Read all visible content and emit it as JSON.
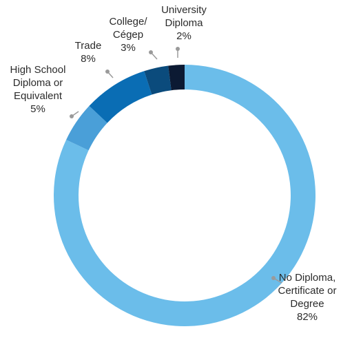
{
  "chart_data": {
    "type": "pie",
    "variant": "donut",
    "title": "",
    "slices": [
      {
        "label": [
          "No Diploma,",
          "Certificate or",
          "Degree"
        ],
        "value_label": "82%",
        "value": 82,
        "color": "#6BBDEA"
      },
      {
        "label": [
          "High School",
          "Diploma or",
          "Equivalent"
        ],
        "value_label": "5%",
        "value": 5,
        "color": "#4A9FD8"
      },
      {
        "label": [
          "Trade"
        ],
        "value_label": "8%",
        "value": 8,
        "color": "#0A6DB4"
      },
      {
        "label": [
          "College/",
          "Cégep"
        ],
        "value_label": "3%",
        "value": 3,
        "color": "#0B4B7C"
      },
      {
        "label": [
          "University",
          "Diploma"
        ],
        "value_label": "2%",
        "value": 2,
        "color": "#0C1A33"
      }
    ],
    "leader_color": "#9a9a9a"
  }
}
